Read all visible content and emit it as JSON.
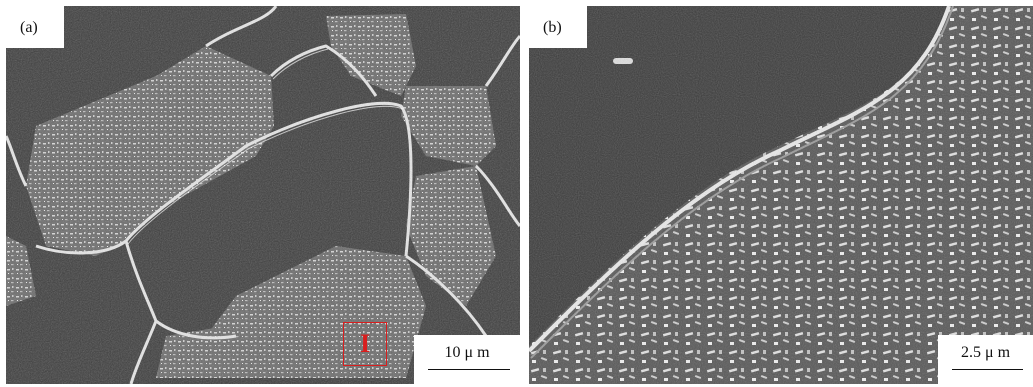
{
  "figure": {
    "panels": [
      {
        "label": "(a)",
        "scale_text": "10 μ m",
        "roi_label": "I"
      },
      {
        "label": "(b)",
        "scale_text": "2.5 μ m"
      }
    ],
    "colors": {
      "grain": "#3e3e3e",
      "boundary": "#e6e6e6",
      "roi": "#d81e1e",
      "label_bg": "#ffffff"
    }
  }
}
